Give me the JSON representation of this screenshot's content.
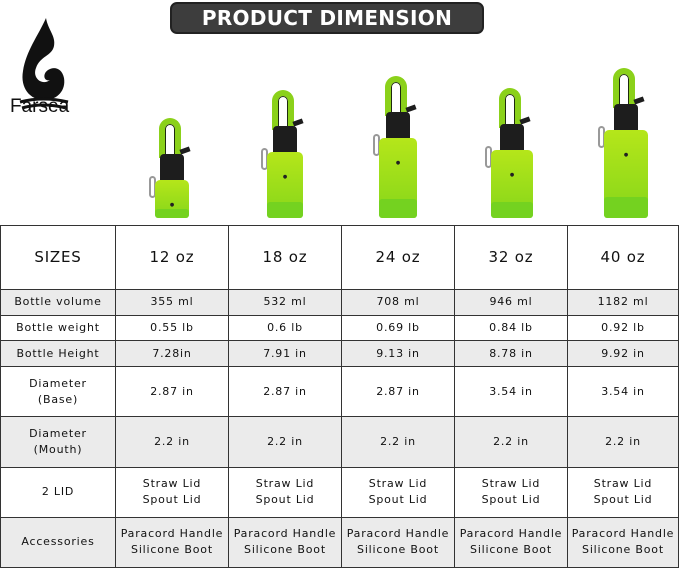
{
  "title": "PRODUCT DIMENSION",
  "brand": "Farsea",
  "colors": {
    "bottle_top": "#b5e61a",
    "bottle_bottom": "#86d61a",
    "title_bg": "#3d3d3d",
    "row_alt": "#ebebeb"
  },
  "table": {
    "header": [
      "SIZES",
      "12 oz",
      "18 oz",
      "24 oz",
      "32 oz",
      "40 oz"
    ],
    "rows": [
      {
        "label": "Bottle volume",
        "values": [
          "355 ml",
          "532 ml",
          "708 ml",
          "946 ml",
          "1182 ml"
        ]
      },
      {
        "label": "Bottle weight",
        "values": [
          "0.55 lb",
          "0.6 lb",
          "0.69 lb",
          "0.84 lb",
          "0.92 lb"
        ]
      },
      {
        "label": "Bottle Height",
        "values": [
          "7.28in",
          "7.91 in",
          "9.13 in",
          "8.78 in",
          "9.92 in"
        ]
      },
      {
        "label": "Diameter (Base)",
        "values": [
          "2.87 in",
          "2.87 in",
          "2.87 in",
          "3.54 in",
          "3.54 in"
        ]
      },
      {
        "label": "Diameter (Mouth)",
        "values": [
          "2.2 in",
          "2.2 in",
          "2.2 in",
          "2.2 in",
          "2.2 in"
        ]
      },
      {
        "label": "2 LID",
        "values": [
          "Straw Lid Spout Lid",
          "Straw Lid Spout Lid",
          "Straw Lid Spout Lid",
          "Straw Lid Spout Lid",
          "Straw Lid Spout Lid"
        ]
      },
      {
        "label": "Accessories",
        "values": [
          "Paracord Handle Silicone Boot",
          "Paracord Handle Silicone Boot",
          "Paracord Handle Silicone Boot",
          "Paracord Handle Silicone Boot",
          "Paracord Handle Silicone Boot"
        ]
      }
    ]
  }
}
